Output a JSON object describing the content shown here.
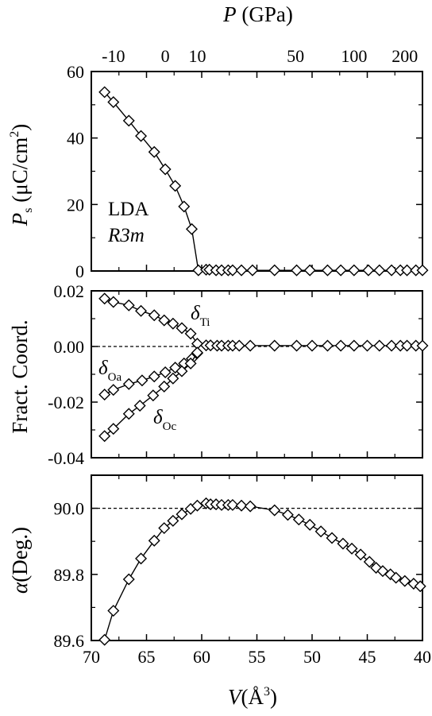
{
  "chart_data": [
    {
      "id": "ps",
      "type": "line",
      "marker": "diamond",
      "ylabel_main": "P",
      "ylabel_sub": "s",
      "ylabel_rest": " (μC/cm",
      "ylabel_sup": "2",
      "ylabel_end": ")",
      "ylim": [
        0,
        60
      ],
      "yticks": [
        0,
        20,
        40,
        60
      ],
      "ytick_labels": [
        "0",
        "20",
        "40",
        "60"
      ],
      "annotations": {
        "line1": "LDA",
        "line2": "R3m"
      },
      "series": [
        {
          "values": [
            [
              68.8,
              53.8
            ],
            [
              68.0,
              50.8
            ],
            [
              66.6,
              45.2
            ],
            [
              65.5,
              40.6
            ],
            [
              64.3,
              35.8
            ],
            [
              63.3,
              30.6
            ],
            [
              62.4,
              25.6
            ],
            [
              61.6,
              19.4
            ],
            [
              60.9,
              12.6
            ],
            [
              60.3,
              0.2
            ],
            [
              59.6,
              0.4
            ],
            [
              59.3,
              0.4
            ],
            [
              58.7,
              0.2
            ],
            [
              58.2,
              0.2
            ],
            [
              57.6,
              0.2
            ],
            [
              57.2,
              0.2
            ],
            [
              56.4,
              0.2
            ],
            [
              55.4,
              0.2
            ],
            [
              53.4,
              0.2
            ],
            [
              51.4,
              0.2
            ],
            [
              50.2,
              0.2
            ],
            [
              48.6,
              0.2
            ],
            [
              47.4,
              0.2
            ],
            [
              46.2,
              0.2
            ],
            [
              44.9,
              0.2
            ],
            [
              43.9,
              0.2
            ],
            [
              42.8,
              0.2
            ],
            [
              42.0,
              0.2
            ],
            [
              41.4,
              0.2
            ],
            [
              40.6,
              0.2
            ],
            [
              40.0,
              0.2
            ]
          ]
        }
      ]
    },
    {
      "id": "fract",
      "type": "line",
      "marker": "diamond",
      "ylabel": "Fract. Coord.",
      "ylim": [
        -0.04,
        0.02
      ],
      "yticks": [
        -0.04,
        -0.02,
        0.0,
        0.02
      ],
      "ytick_labels": [
        "-0.04",
        "-0.02",
        "0.00",
        "0.02"
      ],
      "reference_line": 0.0,
      "series": [
        {
          "name_main": "δ",
          "name_sub": "Ti",
          "values": [
            [
              68.8,
              0.0172
            ],
            [
              68.0,
              0.016
            ],
            [
              66.6,
              0.0148
            ],
            [
              65.5,
              0.0128
            ],
            [
              64.3,
              0.0112
            ],
            [
              63.4,
              0.0094
            ],
            [
              62.6,
              0.0082
            ],
            [
              61.8,
              0.0066
            ],
            [
              61.0,
              0.0046
            ],
            [
              60.4,
              0.001
            ],
            [
              59.6,
              0.0004
            ],
            [
              59.2,
              0.0004
            ],
            [
              58.6,
              0.0003
            ],
            [
              58.2,
              0.0003
            ],
            [
              57.6,
              0.0003
            ],
            [
              57.2,
              0.0003
            ],
            [
              56.6,
              0.0003
            ],
            [
              55.6,
              0.0003
            ],
            [
              53.4,
              0.0003
            ],
            [
              51.4,
              0.0003
            ],
            [
              50.0,
              0.0003
            ],
            [
              48.6,
              0.0003
            ],
            [
              47.4,
              0.0003
            ],
            [
              46.2,
              0.0003
            ],
            [
              45.0,
              0.0003
            ],
            [
              43.9,
              0.0003
            ],
            [
              42.8,
              0.0003
            ],
            [
              42.0,
              0.0003
            ],
            [
              41.4,
              0.0003
            ],
            [
              40.6,
              0.0003
            ],
            [
              40.0,
              0.0003
            ]
          ]
        },
        {
          "name_main": "δ",
          "name_sub": "Oa",
          "values": [
            [
              68.8,
              -0.0173
            ],
            [
              68.0,
              -0.0156
            ],
            [
              66.6,
              -0.0135
            ],
            [
              65.4,
              -0.0122
            ],
            [
              64.3,
              -0.0108
            ],
            [
              63.3,
              -0.0093
            ],
            [
              62.4,
              -0.0076
            ],
            [
              61.6,
              -0.0061
            ],
            [
              60.9,
              -0.0044
            ],
            [
              60.4,
              -0.0024
            ]
          ]
        },
        {
          "name_main": "δ",
          "name_sub": "Oc",
          "values": [
            [
              68.8,
              -0.0322
            ],
            [
              68.0,
              -0.0296
            ],
            [
              66.6,
              -0.0242
            ],
            [
              65.6,
              -0.0213
            ],
            [
              64.4,
              -0.0176
            ],
            [
              63.4,
              -0.0144
            ],
            [
              62.6,
              -0.0115
            ],
            [
              61.8,
              -0.0089
            ],
            [
              61.0,
              -0.0061
            ],
            [
              60.4,
              -0.0022
            ]
          ]
        }
      ]
    },
    {
      "id": "alpha",
      "type": "line",
      "marker": "diamond",
      "ylabel_main": "α",
      "ylabel_rest": "(Deg.)",
      "ylim": [
        89.6,
        90.1
      ],
      "yticks": [
        89.6,
        89.8,
        90.0
      ],
      "ytick_labels": [
        "89.6",
        "89.8",
        "90.0"
      ],
      "reference_line": 90.0,
      "xlabel_main": "V",
      "xlabel_rest": "(Å",
      "xlabel_sup": "3",
      "xlabel_end": ")",
      "xlim": [
        70,
        40
      ],
      "xticks": [
        70,
        65,
        60,
        55,
        50,
        45,
        40
      ],
      "xtick_labels": [
        "70",
        "65",
        "60",
        "55",
        "50",
        "45",
        "40"
      ],
      "top_axis": {
        "label_main": "P",
        "label_rest": " (GPa)",
        "ticks_at_volume": [
          68.0,
          63.3,
          60.4,
          51.5,
          46.2,
          41.6
        ],
        "tick_labels": [
          "-10",
          "0",
          "10",
          "50",
          "100",
          "200"
        ]
      },
      "series": [
        {
          "values": [
            [
              68.8,
              89.602
            ],
            [
              68.0,
              89.69
            ],
            [
              66.6,
              89.785
            ],
            [
              65.5,
              89.848
            ],
            [
              64.3,
              89.902
            ],
            [
              63.4,
              89.94
            ],
            [
              62.6,
              89.962
            ],
            [
              61.8,
              89.982
            ],
            [
              61.0,
              89.998
            ],
            [
              60.4,
              90.008
            ],
            [
              59.6,
              90.015
            ],
            [
              59.2,
              90.012
            ],
            [
              58.7,
              90.012
            ],
            [
              58.2,
              90.01
            ],
            [
              57.6,
              90.01
            ],
            [
              57.2,
              90.01
            ],
            [
              56.4,
              90.008
            ],
            [
              55.6,
              90.006
            ],
            [
              53.4,
              89.994
            ],
            [
              52.2,
              89.98
            ],
            [
              51.2,
              89.966
            ],
            [
              50.2,
              89.95
            ],
            [
              49.2,
              89.93
            ],
            [
              48.2,
              89.91
            ],
            [
              47.2,
              89.893
            ],
            [
              46.4,
              89.878
            ],
            [
              45.6,
              89.86
            ],
            [
              44.8,
              89.838
            ],
            [
              44.2,
              89.82
            ],
            [
              43.6,
              89.81
            ],
            [
              42.9,
              89.8
            ],
            [
              42.4,
              89.79
            ],
            [
              41.6,
              89.78
            ],
            [
              40.8,
              89.772
            ],
            [
              40.2,
              89.764
            ]
          ]
        }
      ]
    }
  ]
}
